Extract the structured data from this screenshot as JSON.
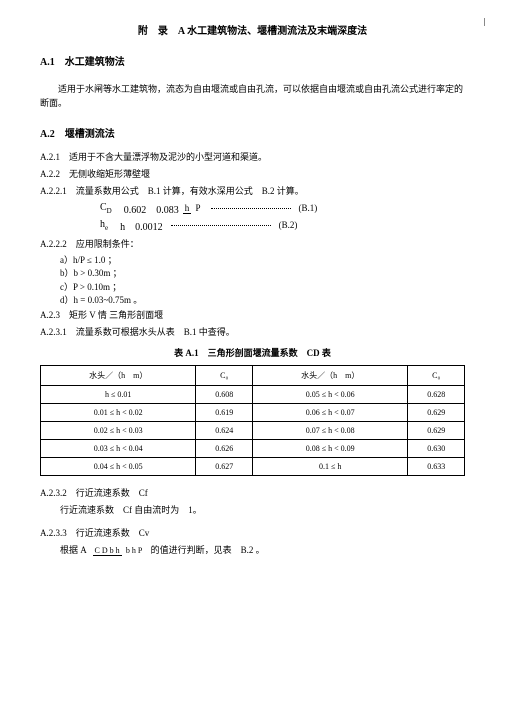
{
  "title": "附　录　A 水工建筑物法、堰槽测流法及末端深度法",
  "s1": {
    "heading": "A.1　水工建筑物法",
    "para": "适用于水闸等水工建筑物，流态为自由堰流或自由孔流，可以依据自由堰流或自由孔流公式进行率定的断面。"
  },
  "s2": {
    "heading": "A.2　堰槽测流法",
    "a21": "A.2.1　适用于不含大量漂浮物及泥沙的小型河道和渠道。",
    "a22": "A.2.2　无侧收缩矩形薄壁堰",
    "a221": "A.2.2.1　流量系数用公式　B.1 计算，有效水深用公式　B.2 计算。",
    "eq1": {
      "cd": "C",
      "cdsub": "D",
      "vals": "0.602　0.083",
      "frac_num": "h",
      "frac_den": "P",
      "num": "(B.1)"
    },
    "eq2": {
      "he": "h",
      "hesub": "e",
      "h": "h　0.0012",
      "num": "(B.2)"
    },
    "a222": "A.2.2.2　应用限制条件：",
    "conds": {
      "a": "a）h/P ≤ 1.0 ；",
      "b": "b）b > 0.30m ；",
      "c": "c）P > 0.10m ；",
      "d": "d）h = 0.03~0.75m 。"
    },
    "a23": "A.2.3　矩形 V 情 三角形剖面堰",
    "a231": "A.2.3.1　流量系数可根据水头从表　B.1 中查得。",
    "table_title": "表 A.1　三角形剖面堰流量系数　CD 表",
    "table": {
      "headers": [
        "水头／（h　m）",
        "C₀",
        "水头／（h　m）",
        "C₀"
      ],
      "rows": [
        [
          "h ≤ 0.01",
          "0.608",
          "0.05 ≤ h < 0.06",
          "0.628"
        ],
        [
          "0.01 ≤ h < 0.02",
          "0.619",
          "0.06 ≤ h < 0.07",
          "0.629"
        ],
        [
          "0.02 ≤ h < 0.03",
          "0.624",
          "0.07 ≤ h < 0.08",
          "0.629"
        ],
        [
          "0.03 ≤ h < 0.04",
          "0.626",
          "0.08 ≤ h < 0.09",
          "0.630"
        ],
        [
          "0.04 ≤ h < 0.05",
          "0.627",
          "0.1 ≤ h",
          "0.633"
        ]
      ]
    },
    "a232": "A.2.3.2　行近流速系数　Cf",
    "a232_txt": "行近流速系数　Cf 自由流时为　1。",
    "a233": "A.2.3.3　行近流速系数　Cv",
    "a233_txt_pre": "根据 A",
    "a233_txt_frac_num": "C D b h",
    "a233_txt_frac_den": "b h P",
    "a233_txt_post": " 的值进行判断，见表　B.2 。"
  }
}
